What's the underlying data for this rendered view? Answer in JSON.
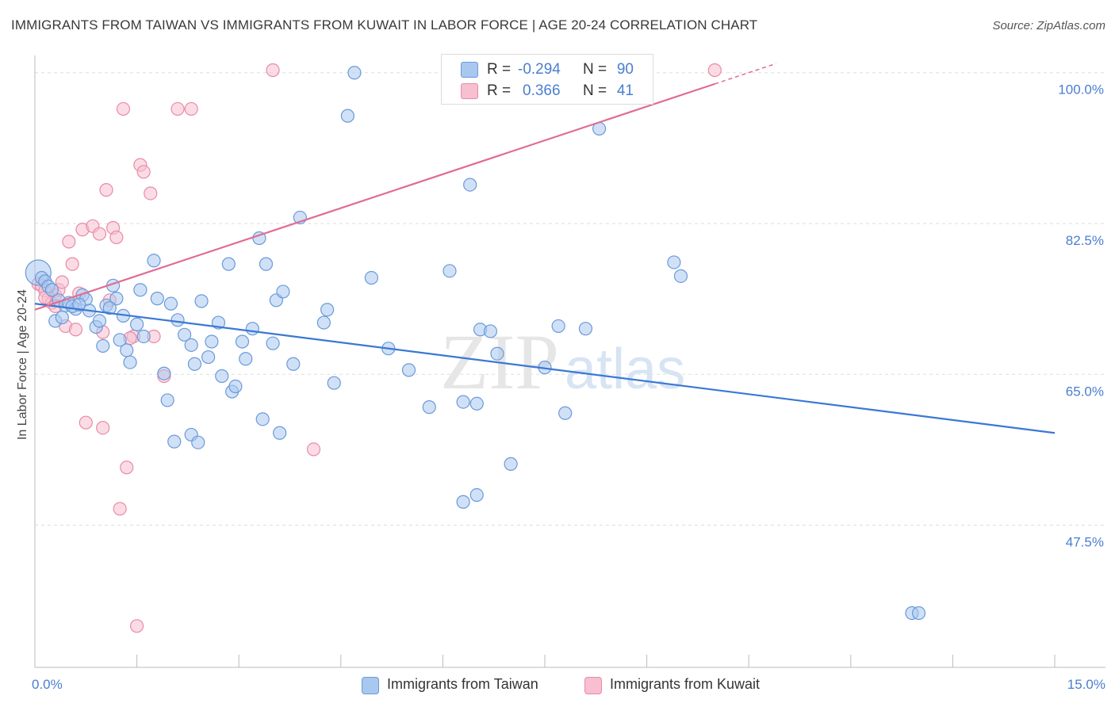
{
  "title": "IMMIGRANTS FROM TAIWAN VS IMMIGRANTS FROM KUWAIT IN LABOR FORCE | AGE 20-24 CORRELATION CHART",
  "source": "Source: ZipAtlas.com",
  "watermark": {
    "zip": "ZIP",
    "atlas": "atlas"
  },
  "legend": {
    "rows": [
      {
        "r_label": "R =",
        "r_value": "-0.294",
        "n_label": "N =",
        "n_value": "90"
      },
      {
        "r_label": "R =",
        "r_value": "0.366",
        "n_label": "N =",
        "n_value": "41"
      }
    ]
  },
  "bottom_legend": {
    "taiwan": "Immigrants from Taiwan",
    "kuwait": "Immigrants from Kuwait"
  },
  "colors": {
    "taiwan_fill": "#a9c8f0",
    "taiwan_stroke": "#6a9ad8",
    "taiwan_line": "#3a78d4",
    "kuwait_fill": "#f7bfd0",
    "kuwait_stroke": "#e88aa8",
    "kuwait_line": "#e06c94",
    "tick_label": "#4a7ed0",
    "grid": "#dddddd"
  },
  "chart_data": {
    "type": "scatter",
    "title": "IMMIGRANTS FROM TAIWAN VS IMMIGRANTS FROM KUWAIT IN LABOR FORCE | AGE 20-24 CORRELATION CHART",
    "xlabel": "",
    "ylabel": "In Labor Force | Age 20-24",
    "xlim": [
      0,
      15
    ],
    "ylim": [
      31,
      102
    ],
    "x_tick_labels": [
      {
        "value": 0,
        "label": "0.0%"
      },
      {
        "value": 15,
        "label": "15.0%"
      }
    ],
    "y_tick_labels": [
      {
        "value": 100,
        "label": "100.0%"
      },
      {
        "value": 82.5,
        "label": "82.5%"
      },
      {
        "value": 65,
        "label": "65.0%"
      },
      {
        "value": 47.5,
        "label": "47.5%"
      }
    ],
    "grid": true,
    "legend_placement": "top-center",
    "series": [
      {
        "name": "Immigrants from Taiwan",
        "R": -0.294,
        "N": 90,
        "trend": {
          "x": [
            0,
            15
          ],
          "y": [
            73.2,
            58.2
          ]
        },
        "points": [
          [
            0.05,
            76.8
          ],
          [
            0.1,
            76.2
          ],
          [
            0.15,
            75.8
          ],
          [
            0.2,
            75.2
          ],
          [
            0.3,
            71.2
          ],
          [
            0.35,
            73.6
          ],
          [
            0.45,
            73.0
          ],
          [
            0.5,
            73.3
          ],
          [
            0.6,
            72.6
          ],
          [
            0.7,
            74.2
          ],
          [
            0.75,
            73.7
          ],
          [
            0.8,
            72.4
          ],
          [
            0.9,
            70.5
          ],
          [
            0.95,
            71.2
          ],
          [
            1.0,
            68.3
          ],
          [
            1.05,
            73.0
          ],
          [
            1.15,
            75.3
          ],
          [
            1.2,
            73.8
          ],
          [
            1.3,
            71.8
          ],
          [
            1.35,
            67.8
          ],
          [
            1.4,
            66.4
          ],
          [
            1.5,
            70.8
          ],
          [
            1.55,
            74.8
          ],
          [
            1.6,
            69.4
          ],
          [
            1.75,
            78.2
          ],
          [
            1.8,
            73.8
          ],
          [
            1.9,
            65.1
          ],
          [
            1.95,
            62.0
          ],
          [
            2.0,
            73.2
          ],
          [
            2.1,
            71.3
          ],
          [
            2.2,
            69.6
          ],
          [
            2.3,
            68.4
          ],
          [
            2.35,
            66.2
          ],
          [
            2.45,
            73.5
          ],
          [
            2.55,
            67.0
          ],
          [
            2.6,
            68.8
          ],
          [
            2.7,
            71.0
          ],
          [
            2.75,
            64.8
          ],
          [
            2.85,
            77.8
          ],
          [
            2.9,
            63.0
          ],
          [
            2.95,
            63.6
          ],
          [
            3.05,
            68.8
          ],
          [
            3.1,
            66.8
          ],
          [
            3.2,
            70.3
          ],
          [
            3.3,
            80.8
          ],
          [
            3.4,
            77.8
          ],
          [
            3.5,
            68.6
          ],
          [
            3.55,
            73.6
          ],
          [
            3.65,
            74.6
          ],
          [
            3.8,
            66.2
          ],
          [
            3.9,
            83.2
          ],
          [
            2.05,
            57.2
          ],
          [
            2.3,
            58.0
          ],
          [
            3.35,
            59.8
          ],
          [
            3.6,
            58.2
          ],
          [
            4.25,
            71.0
          ],
          [
            4.3,
            72.5
          ],
          [
            4.4,
            64.0
          ],
          [
            4.6,
            95.0
          ],
          [
            4.7,
            100.0
          ],
          [
            4.95,
            76.2
          ],
          [
            5.2,
            68.0
          ],
          [
            5.5,
            65.5
          ],
          [
            5.8,
            61.2
          ],
          [
            6.1,
            77.0
          ],
          [
            6.3,
            61.8
          ],
          [
            6.4,
            87.0
          ],
          [
            6.5,
            61.6
          ],
          [
            6.55,
            70.2
          ],
          [
            6.7,
            70.0
          ],
          [
            6.8,
            67.4
          ],
          [
            7.0,
            54.6
          ],
          [
            6.3,
            50.2
          ],
          [
            6.5,
            51.0
          ],
          [
            7.5,
            65.8
          ],
          [
            7.7,
            70.6
          ],
          [
            7.8,
            60.5
          ],
          [
            8.1,
            70.3
          ],
          [
            8.3,
            93.5
          ],
          [
            9.4,
            78.0
          ],
          [
            9.5,
            76.4
          ],
          [
            12.9,
            37.3
          ],
          [
            13.0,
            37.3
          ],
          [
            0.55,
            72.9
          ],
          [
            0.65,
            73.1
          ],
          [
            1.25,
            69.0
          ],
          [
            0.4,
            71.6
          ],
          [
            2.4,
            57.1
          ],
          [
            0.25,
            74.8
          ],
          [
            1.1,
            72.7
          ]
        ]
      },
      {
        "name": "Immigrants from Kuwait",
        "R": 0.366,
        "N": 41,
        "trend": {
          "x": [
            0,
            10
          ],
          "y": [
            72.5,
            98.7
          ]
        },
        "points": [
          [
            0.05,
            75.5
          ],
          [
            0.1,
            75.3
          ],
          [
            0.15,
            74.7
          ],
          [
            0.2,
            73.8
          ],
          [
            0.25,
            73.3
          ],
          [
            0.3,
            74.2
          ],
          [
            0.35,
            74.8
          ],
          [
            0.4,
            75.7
          ],
          [
            0.45,
            70.6
          ],
          [
            0.5,
            80.4
          ],
          [
            0.55,
            77.8
          ],
          [
            0.6,
            70.2
          ],
          [
            0.7,
            81.8
          ],
          [
            0.85,
            82.2
          ],
          [
            0.95,
            81.3
          ],
          [
            1.0,
            69.9
          ],
          [
            1.05,
            86.4
          ],
          [
            1.1,
            73.6
          ],
          [
            1.15,
            82.0
          ],
          [
            1.2,
            80.9
          ],
          [
            1.3,
            95.8
          ],
          [
            1.45,
            69.4
          ],
          [
            1.55,
            89.3
          ],
          [
            1.6,
            88.5
          ],
          [
            1.7,
            86.0
          ],
          [
            1.75,
            69.4
          ],
          [
            1.9,
            64.8
          ],
          [
            2.3,
            95.8
          ],
          [
            2.1,
            95.8
          ],
          [
            3.5,
            100.3
          ],
          [
            4.1,
            56.3
          ],
          [
            0.75,
            59.4
          ],
          [
            1.0,
            58.8
          ],
          [
            1.35,
            54.2
          ],
          [
            1.25,
            49.4
          ],
          [
            1.5,
            35.8
          ],
          [
            10.0,
            100.3
          ],
          [
            0.15,
            73.9
          ],
          [
            0.3,
            72.9
          ],
          [
            0.65,
            74.4
          ],
          [
            1.4,
            69.2
          ]
        ]
      }
    ]
  }
}
